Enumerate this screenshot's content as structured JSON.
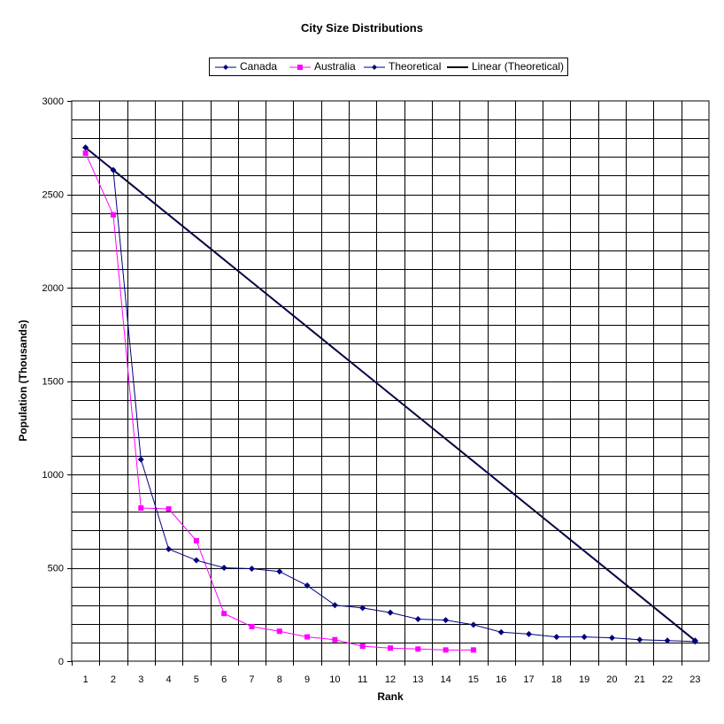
{
  "chart_data": {
    "type": "line",
    "title": "City Size Distributions",
    "xlabel": "Rank",
    "ylabel": "Population (Thousands)",
    "x_categories": [
      "1",
      "2",
      "3",
      "4",
      "5",
      "6",
      "7",
      "8",
      "9",
      "10",
      "11",
      "12",
      "13",
      "14",
      "15",
      "16",
      "17",
      "18",
      "19",
      "20",
      "21",
      "22",
      "23"
    ],
    "ylim": [
      0,
      3000
    ],
    "y_ticks": [
      0,
      500,
      1000,
      1500,
      2000,
      2500,
      3000
    ],
    "grid": true,
    "legend_position": "top-center",
    "series": [
      {
        "name": "Canada",
        "color": "#000080",
        "marker": "diamond",
        "values": [
          2750,
          2630,
          1080,
          600,
          540,
          500,
          495,
          480,
          405,
          300,
          285,
          260,
          225,
          220,
          195,
          155,
          145,
          130,
          130,
          125,
          115,
          110,
          105
        ]
      },
      {
        "name": "Australia",
        "color": "#ff00ff",
        "marker": "square",
        "values": [
          2720,
          2390,
          820,
          815,
          645,
          255,
          185,
          160,
          130,
          115,
          80,
          70,
          65,
          60,
          60
        ]
      },
      {
        "name": "Theoretical",
        "color": "#000080",
        "marker": "diamond",
        "values": [
          2750,
          null,
          null,
          null,
          null,
          null,
          null,
          null,
          null,
          null,
          null,
          null,
          null,
          null,
          null,
          null,
          null,
          null,
          null,
          null,
          null,
          null,
          110
        ]
      },
      {
        "name": "Linear (Theoretical)",
        "color": "#000000",
        "marker": "none",
        "values": [
          2750,
          null,
          null,
          null,
          null,
          null,
          null,
          null,
          null,
          null,
          null,
          null,
          null,
          null,
          null,
          null,
          null,
          null,
          null,
          null,
          null,
          null,
          110
        ]
      }
    ]
  }
}
